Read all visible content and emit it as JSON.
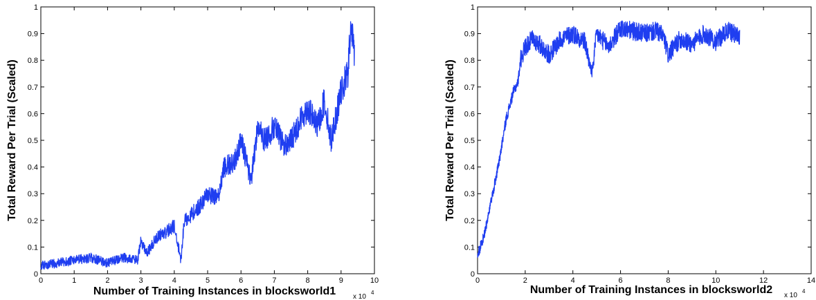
{
  "chart_data": [
    {
      "type": "line",
      "xlabel": "Number of Training Instances in blocksworld1",
      "ylabel": "Total Reward Per Trial (Scaled)",
      "x_multiplier_label": "x 10",
      "x_multiplier_exp": "4",
      "xlim": [
        0,
        10
      ],
      "ylim": [
        0,
        1
      ],
      "xticks": [
        0,
        1,
        2,
        3,
        4,
        5,
        6,
        7,
        8,
        9,
        10
      ],
      "yticks": [
        0,
        0.1,
        0.2,
        0.3,
        0.4,
        0.5,
        0.6,
        0.7,
        0.8,
        0.9,
        1
      ],
      "xtick_labels": [
        "0",
        "1",
        "2",
        "3",
        "4",
        "5",
        "6",
        "7",
        "8",
        "9",
        "10"
      ],
      "ytick_labels": [
        "0",
        "0.1",
        "0.2",
        "0.3",
        "0.4",
        "0.5",
        "0.6",
        "0.7",
        "0.8",
        "0.9",
        "1"
      ],
      "line_color": "#1f3ef0",
      "x": [
        0,
        0.5,
        1,
        1.5,
        2,
        2.5,
        2.9,
        3.0,
        3.2,
        3.5,
        3.8,
        4.0,
        4.2,
        4.3,
        4.5,
        4.8,
        5.0,
        5.3,
        5.5,
        5.8,
        6.0,
        6.3,
        6.5,
        6.7,
        7.0,
        7.3,
        7.5,
        7.8,
        8.0,
        8.3,
        8.5,
        8.7,
        9.0,
        9.2,
        9.3,
        9.4
      ],
      "y": [
        0.03,
        0.04,
        0.05,
        0.06,
        0.04,
        0.06,
        0.05,
        0.12,
        0.08,
        0.14,
        0.16,
        0.18,
        0.05,
        0.2,
        0.22,
        0.26,
        0.3,
        0.28,
        0.4,
        0.42,
        0.5,
        0.35,
        0.55,
        0.5,
        0.55,
        0.48,
        0.5,
        0.58,
        0.62,
        0.55,
        0.65,
        0.5,
        0.68,
        0.75,
        0.93,
        0.82
      ]
    },
    {
      "type": "line",
      "xlabel": "Number of Training Instances in blocksworld2",
      "ylabel": "Total Reward Per Trial (Scaled)",
      "x_multiplier_label": "x 10",
      "x_multiplier_exp": "4",
      "xlim": [
        0,
        14
      ],
      "ylim": [
        0,
        1
      ],
      "xticks": [
        0,
        2,
        4,
        6,
        8,
        10,
        12,
        14
      ],
      "yticks": [
        0,
        0.1,
        0.2,
        0.3,
        0.4,
        0.5,
        0.6,
        0.7,
        0.8,
        0.9,
        1
      ],
      "xtick_labels": [
        "0",
        "2",
        "4",
        "6",
        "8",
        "10",
        "12",
        "14"
      ],
      "ytick_labels": [
        "0",
        "0.1",
        "0.2",
        "0.3",
        "0.4",
        "0.5",
        "0.6",
        "0.7",
        "0.8",
        "0.9",
        "1"
      ],
      "line_color": "#1f3ef0",
      "x": [
        0,
        0.3,
        0.6,
        0.9,
        1.2,
        1.5,
        1.7,
        1.8,
        2.0,
        2.3,
        2.6,
        3.0,
        3.5,
        4.0,
        4.5,
        4.8,
        5.0,
        5.5,
        6.0,
        6.5,
        7.0,
        7.5,
        7.8,
        8.0,
        8.5,
        9.0,
        9.5,
        10.0,
        10.5,
        11.0
      ],
      "y": [
        0.07,
        0.15,
        0.28,
        0.42,
        0.58,
        0.68,
        0.72,
        0.8,
        0.85,
        0.88,
        0.86,
        0.82,
        0.88,
        0.9,
        0.87,
        0.75,
        0.9,
        0.85,
        0.92,
        0.91,
        0.9,
        0.91,
        0.89,
        0.82,
        0.88,
        0.86,
        0.9,
        0.87,
        0.91,
        0.89
      ]
    }
  ]
}
